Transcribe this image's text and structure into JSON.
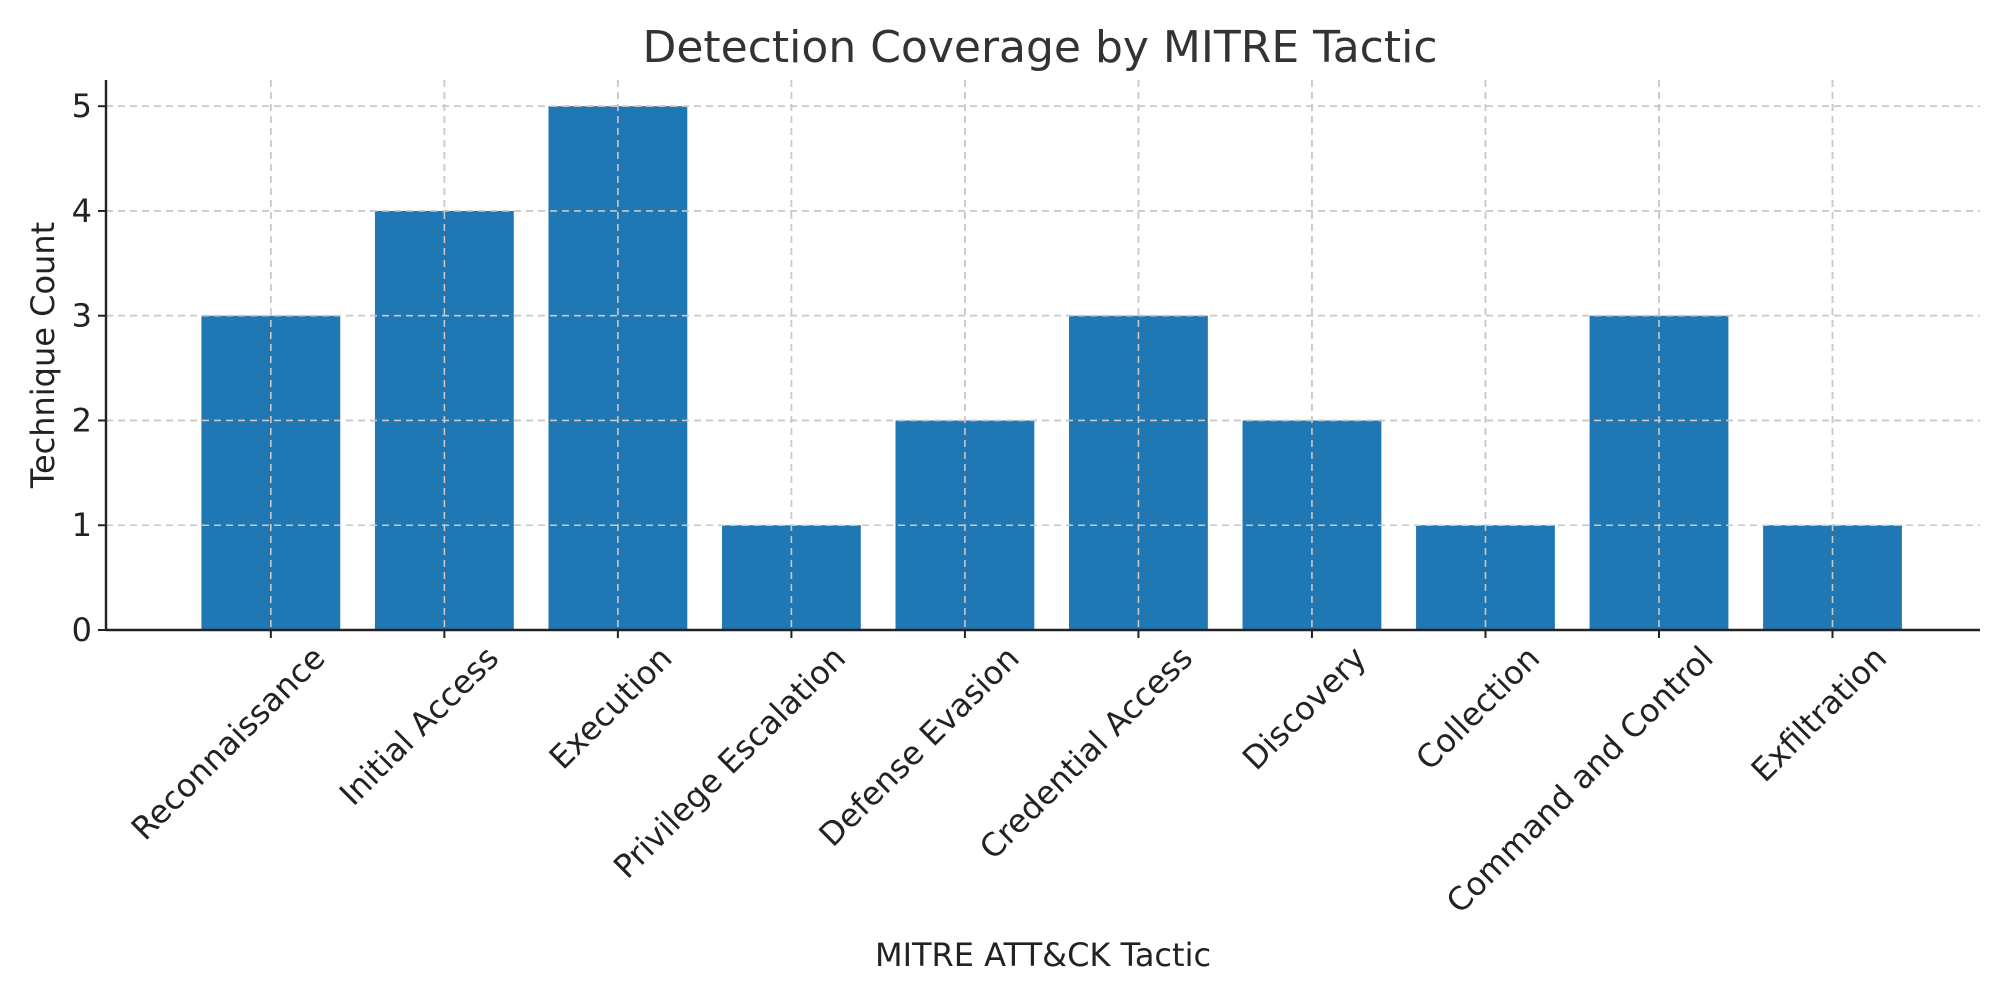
{
  "chart_data": {
    "type": "bar",
    "title": "Detection Coverage by MITRE Tactic",
    "xlabel": "MITRE ATT&CK Tactic",
    "ylabel": "Technique Count",
    "categories": [
      "Reconnaissance",
      "Initial Access",
      "Execution",
      "Privilege Escalation",
      "Defense Evasion",
      "Credential Access",
      "Discovery",
      "Collection",
      "Command and Control",
      "Exfiltration"
    ],
    "values": [
      3,
      4,
      5,
      1,
      2,
      3,
      2,
      1,
      3,
      1
    ],
    "ylim": [
      0,
      5.25
    ],
    "yticks": [
      "0",
      "1",
      "2",
      "3",
      "4",
      "5"
    ],
    "grid": true,
    "legend": "none",
    "colors": {
      "bar": "#1f77b4"
    }
  }
}
